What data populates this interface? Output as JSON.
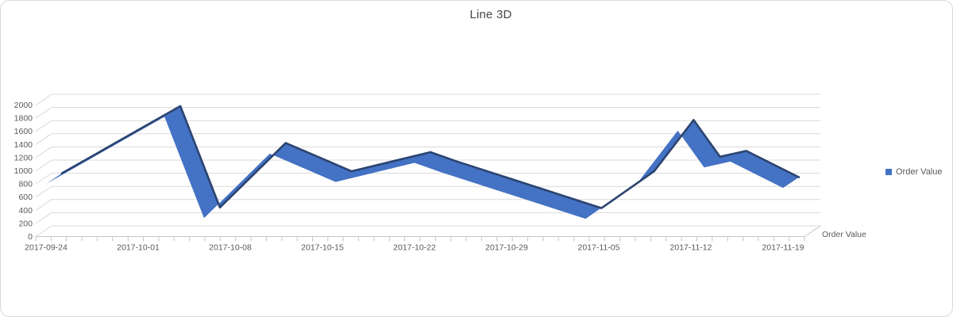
{
  "title": "Line 3D",
  "legend": {
    "label": "Order Value"
  },
  "axis_title": "Order Value",
  "colors": {
    "series": "#4472C4",
    "series_edge": "#2B4470",
    "grid": "#D9D9D9",
    "tick": "#C6C6C6",
    "text": "#595959",
    "title": "#474747",
    "border": "#D9D9D9"
  },
  "chart_data": {
    "type": "line",
    "style": "3d-ribbon",
    "title": "Line 3D",
    "series": [
      {
        "name": "Order Value",
        "points": [
          {
            "date": "2017-09-24",
            "value": 800
          },
          {
            "date": "2017-10-03",
            "value": 1820
          },
          {
            "date": "2017-10-06",
            "value": 280
          },
          {
            "date": "2017-10-11",
            "value": 1260
          },
          {
            "date": "2017-10-16",
            "value": 830
          },
          {
            "date": "2017-10-22",
            "value": 1120
          },
          {
            "date": "2017-10-24",
            "value": 980
          },
          {
            "date": "2017-11-04",
            "value": 270
          },
          {
            "date": "2017-11-08",
            "value": 830
          },
          {
            "date": "2017-11-11",
            "value": 1610
          },
          {
            "date": "2017-11-13",
            "value": 1050
          },
          {
            "date": "2017-11-15",
            "value": 1140
          },
          {
            "date": "2017-11-19",
            "value": 740
          }
        ]
      }
    ],
    "ylim": [
      0,
      2000
    ],
    "y_tick_step": 200,
    "x_tick_labels": [
      "2017-09-24",
      "2017-10-01",
      "2017-10-08",
      "2017-10-15",
      "2017-10-22",
      "2017-10-29",
      "2017-11-05",
      "2017-11-12",
      "2017-11-19"
    ],
    "x_minor_tick_count": 51,
    "legend_position": "right",
    "grid": true,
    "xlabel": "",
    "ylabel": "Order Value"
  }
}
